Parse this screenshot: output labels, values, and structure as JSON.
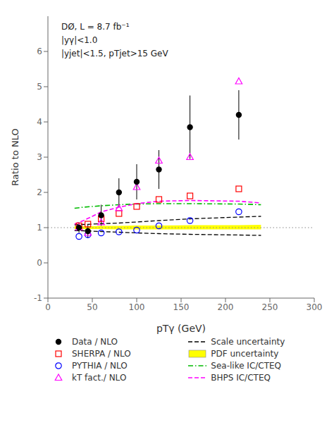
{
  "chart_data": {
    "type": "scatter",
    "x_label": "pTγ (GeV)",
    "y_label": "Ratio to NLO",
    "xlim": [
      0,
      300
    ],
    "ylim": [
      -1,
      7
    ],
    "xticks": [
      0,
      50,
      100,
      150,
      200,
      250,
      300
    ],
    "yticks": [
      -1,
      0,
      1,
      2,
      3,
      4,
      5,
      6
    ],
    "grid": false,
    "legend": "bottom",
    "annotations": [
      "DØ, L = 8.7 fb⁻¹",
      "|yγ|<1.0",
      "|yjet|<1.5, pTjet>15 GeV"
    ],
    "reference_line": 1.0,
    "series": [
      {
        "name": "Data / NLO",
        "type": "scatter",
        "marker": "circle",
        "color": "#000000",
        "x": [
          35,
          45,
          60,
          80,
          100,
          125,
          160,
          215
        ],
        "values": [
          1.0,
          0.9,
          1.35,
          2.0,
          2.3,
          2.65,
          3.85,
          4.2
        ],
        "error_low": [
          0.15,
          0.2,
          0.3,
          0.4,
          0.5,
          0.55,
          0.9,
          0.7
        ],
        "error_high": [
          0.15,
          0.2,
          0.3,
          0.4,
          0.5,
          0.55,
          0.9,
          0.7
        ]
      },
      {
        "name": "SHERPA / NLO",
        "type": "scatter",
        "marker": "open_square",
        "color": "#ff0000",
        "x": [
          35,
          45,
          60,
          80,
          100,
          125,
          160,
          215
        ],
        "values": [
          1.05,
          1.1,
          1.25,
          1.4,
          1.6,
          1.8,
          1.9,
          2.1
        ]
      },
      {
        "name": "PYTHIA / NLO",
        "type": "scatter",
        "marker": "open_circle",
        "color": "#0000ff",
        "x": [
          35,
          45,
          60,
          80,
          100,
          125,
          160,
          215
        ],
        "values": [
          0.75,
          0.8,
          0.85,
          0.88,
          0.93,
          1.05,
          1.2,
          1.45
        ]
      },
      {
        "name": "kT fact./ NLO",
        "type": "scatter",
        "marker": "open_triangle",
        "color": "#ff00ff",
        "x": [
          35,
          45,
          60,
          80,
          100,
          125,
          160,
          215
        ],
        "values": [
          1.0,
          0.85,
          1.15,
          1.55,
          2.15,
          2.9,
          3.0,
          5.15
        ]
      },
      {
        "name": "Scale uncertainty",
        "type": "band_lines",
        "line_style": "dashed",
        "color": "#000000",
        "x": [
          30,
          40,
          50,
          60,
          80,
          100,
          125,
          160,
          215,
          240
        ],
        "upper": [
          1.08,
          1.09,
          1.1,
          1.11,
          1.13,
          1.16,
          1.2,
          1.25,
          1.3,
          1.32
        ],
        "lower": [
          0.92,
          0.91,
          0.9,
          0.89,
          0.87,
          0.85,
          0.83,
          0.81,
          0.79,
          0.78
        ]
      },
      {
        "name": "PDF uncertainty",
        "type": "band",
        "color": "#ffff00",
        "x": [
          30,
          40,
          50,
          60,
          80,
          100,
          125,
          160,
          215,
          240
        ],
        "upper": [
          1.04,
          1.04,
          1.04,
          1.05,
          1.05,
          1.06,
          1.06,
          1.07,
          1.07,
          1.08
        ],
        "lower": [
          0.96,
          0.96,
          0.96,
          0.96,
          0.95,
          0.95,
          0.95,
          0.95,
          0.95,
          0.95
        ]
      },
      {
        "name": "Sea-like IC/CTEQ",
        "type": "line",
        "line_style": "dashdot",
        "color": "#00bb00",
        "x": [
          30,
          40,
          50,
          60,
          80,
          100,
          125,
          160,
          215,
          240
        ],
        "values": [
          1.55,
          1.58,
          1.6,
          1.62,
          1.65,
          1.67,
          1.68,
          1.68,
          1.67,
          1.65
        ]
      },
      {
        "name": "BHPS IC/CTEQ",
        "type": "line",
        "line_style": "dashed",
        "color": "#ff00ff",
        "x": [
          30,
          40,
          50,
          60,
          80,
          100,
          125,
          160,
          215,
          240
        ],
        "values": [
          1.1,
          1.2,
          1.32,
          1.45,
          1.58,
          1.68,
          1.75,
          1.77,
          1.75,
          1.7
        ]
      }
    ]
  }
}
